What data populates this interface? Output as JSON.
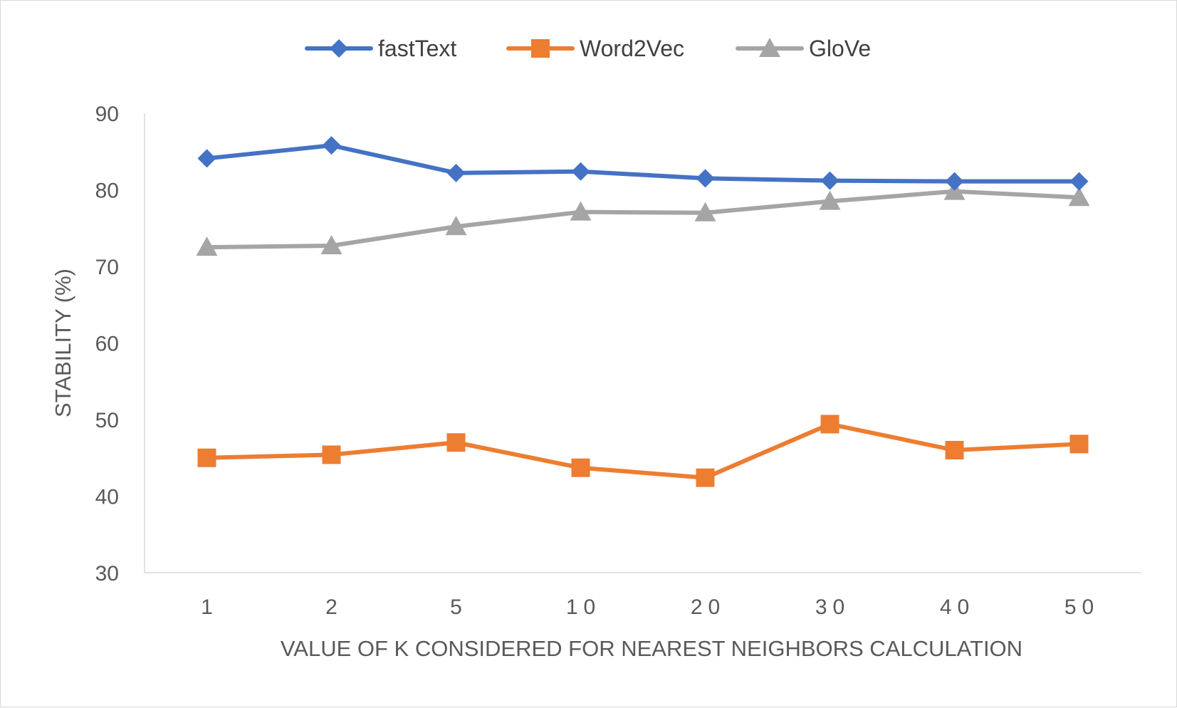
{
  "chart_data": {
    "type": "line",
    "title": "",
    "xlabel": "VALUE OF K CONSIDERED FOR NEAREST NEIGHBORS CALCULATION",
    "ylabel": "STABILITY (%)",
    "categories": [
      "1",
      "2",
      "5",
      "10",
      "20",
      "30",
      "40",
      "50"
    ],
    "ylim": [
      30,
      90
    ],
    "yticks": [
      30,
      40,
      50,
      60,
      70,
      80,
      90
    ],
    "grid": false,
    "legend_position": "top",
    "series": [
      {
        "name": "fastText",
        "color": "#4472c4",
        "marker": "diamond",
        "values": [
          84.1,
          85.8,
          82.2,
          82.4,
          81.5,
          81.2,
          81.1,
          81.1
        ]
      },
      {
        "name": "Word2Vec",
        "color": "#ed7d31",
        "marker": "square",
        "values": [
          45.0,
          45.4,
          47.0,
          43.7,
          42.4,
          49.4,
          46.0,
          46.8
        ]
      },
      {
        "name": "GloVe",
        "color": "#a5a5a5",
        "marker": "triangle",
        "values": [
          72.5,
          72.7,
          75.2,
          77.1,
          77.0,
          78.5,
          79.8,
          79.0
        ]
      }
    ]
  }
}
